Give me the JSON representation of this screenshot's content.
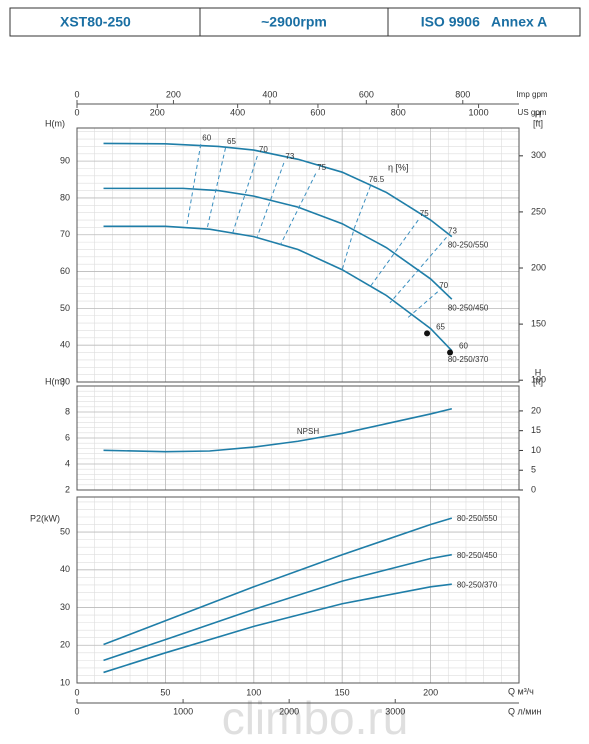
{
  "header": {
    "cells": [
      "XST80-250",
      "~2900rpm",
      "ISO 9906   Annex A"
    ]
  },
  "watermark": "climbo.ru",
  "chart_data": [
    {
      "type": "line",
      "y_label": "H(m)",
      "y2_label": [
        "H",
        "[ft]"
      ],
      "ylim": [
        30,
        99
      ],
      "yticks": [
        30,
        40,
        50,
        60,
        70,
        80,
        90
      ],
      "y2lim": [
        98.4,
        324.8
      ],
      "y2ticks": [
        100,
        150,
        200,
        250,
        300
      ],
      "grid": true,
      "top_axes": [
        {
          "label": "Imp gpm",
          "lim": [
            0,
            916.6
          ],
          "ticks": [
            0,
            200,
            400,
            600,
            800
          ]
        },
        {
          "label": "US gpm",
          "lim": [
            0,
            1100.7
          ],
          "ticks": [
            0,
            200,
            400,
            600,
            800,
            1000
          ]
        }
      ],
      "series": [
        {
          "name": "80-250/550",
          "color": "#1f7ea8",
          "x": [
            15,
            50,
            80,
            100,
            125,
            150,
            175,
            200,
            212
          ],
          "values": [
            94.8,
            94.7,
            94,
            93,
            90.5,
            87,
            81.5,
            74,
            69.5
          ]
        },
        {
          "name": "80-250/450",
          "color": "#1f7ea8",
          "x": [
            15,
            60,
            80,
            100,
            125,
            150,
            175,
            200,
            212
          ],
          "values": [
            82.6,
            82.6,
            82,
            80.5,
            77.5,
            73,
            66.5,
            58,
            52.5
          ]
        },
        {
          "name": "80-250/370",
          "color": "#1f7ea8",
          "x": [
            15,
            50,
            75,
            100,
            125,
            150,
            175,
            200,
            212
          ],
          "values": [
            72.3,
            72.3,
            71.5,
            69.5,
            66,
            60.5,
            53.5,
            44.5,
            38.5
          ]
        }
      ],
      "efficiency_label": "η [%]",
      "efficiency_lines": [
        {
          "label": "60",
          "x": [
            70,
            62
          ],
          "values": [
            94.6,
            72.2
          ]
        },
        {
          "label": "65",
          "x": [
            84,
            73.5
          ],
          "values": [
            93.6,
            71.5
          ]
        },
        {
          "label": "70",
          "x": [
            102,
            88
          ],
          "values": [
            91.4,
            70.4
          ]
        },
        {
          "label": "73",
          "x": [
            117,
            102
          ],
          "values": [
            89.5,
            69.5
          ]
        },
        {
          "label": "75",
          "x": [
            135,
            115
          ],
          "values": [
            86.6,
            67.2
          ]
        },
        {
          "label": "76.5",
          "x": [
            166,
            157,
            150
          ],
          "values": [
            83.3,
            72,
            60.5
          ]
        },
        {
          "label": "75",
          "x": [
            193,
            166
          ],
          "values": [
            74,
            56
          ]
        },
        {
          "label": "73",
          "x": [
            209,
            177
          ],
          "values": [
            69.3,
            51.5
          ]
        },
        {
          "label": "70",
          "x": [
            204,
            186
          ],
          "values": [
            54.5,
            47
          ]
        }
      ],
      "efficiency_points": [
        {
          "label": "65",
          "x": 198,
          "value": 43.2
        },
        {
          "label": "60",
          "x": 211,
          "value": 38
        }
      ]
    },
    {
      "type": "line",
      "y_label": "H(m)",
      "y2_label": [
        "H",
        "[ft]"
      ],
      "ylim": [
        2,
        10
      ],
      "yticks": [
        2,
        4,
        6,
        8
      ],
      "y2lim": [
        0,
        26.3
      ],
      "y2ticks": [
        0,
        5,
        10,
        15,
        20
      ],
      "grid": true,
      "series": [
        {
          "name": "NPSH",
          "color": "#1f7ea8",
          "x": [
            15,
            50,
            75,
            100,
            125,
            150,
            175,
            200,
            212
          ],
          "values": [
            5.05,
            4.95,
            5.0,
            5.3,
            5.75,
            6.35,
            7.1,
            7.85,
            8.25
          ]
        }
      ]
    },
    {
      "type": "line",
      "y_label": "P2(kW)",
      "ylim": [
        10,
        59.3
      ],
      "yticks": [
        10,
        20,
        30,
        40,
        50
      ],
      "grid": true,
      "x_label": "Q  м³/ч",
      "xlim": [
        0,
        250
      ],
      "xticks": [
        0,
        50,
        100,
        150,
        200
      ],
      "x2_label": "Q  л/мин",
      "x2lim": [
        0,
        4166.7
      ],
      "x2ticks": [
        0,
        1000,
        2000,
        3000
      ],
      "series": [
        {
          "name": "80-250/550",
          "color": "#1f7ea8",
          "x": [
            15,
            50,
            100,
            150,
            200,
            212
          ],
          "values": [
            20.2,
            26.5,
            35.5,
            44,
            52,
            53.7
          ]
        },
        {
          "name": "80-250/450",
          "color": "#1f7ea8",
          "x": [
            15,
            50,
            100,
            150,
            200,
            212
          ],
          "values": [
            16,
            21.5,
            29.5,
            37,
            43,
            44
          ]
        },
        {
          "name": "80-250/370",
          "color": "#1f7ea8",
          "x": [
            15,
            50,
            100,
            150,
            200,
            212
          ],
          "values": [
            12.8,
            18,
            25,
            31,
            35.5,
            36.2
          ]
        }
      ]
    }
  ]
}
